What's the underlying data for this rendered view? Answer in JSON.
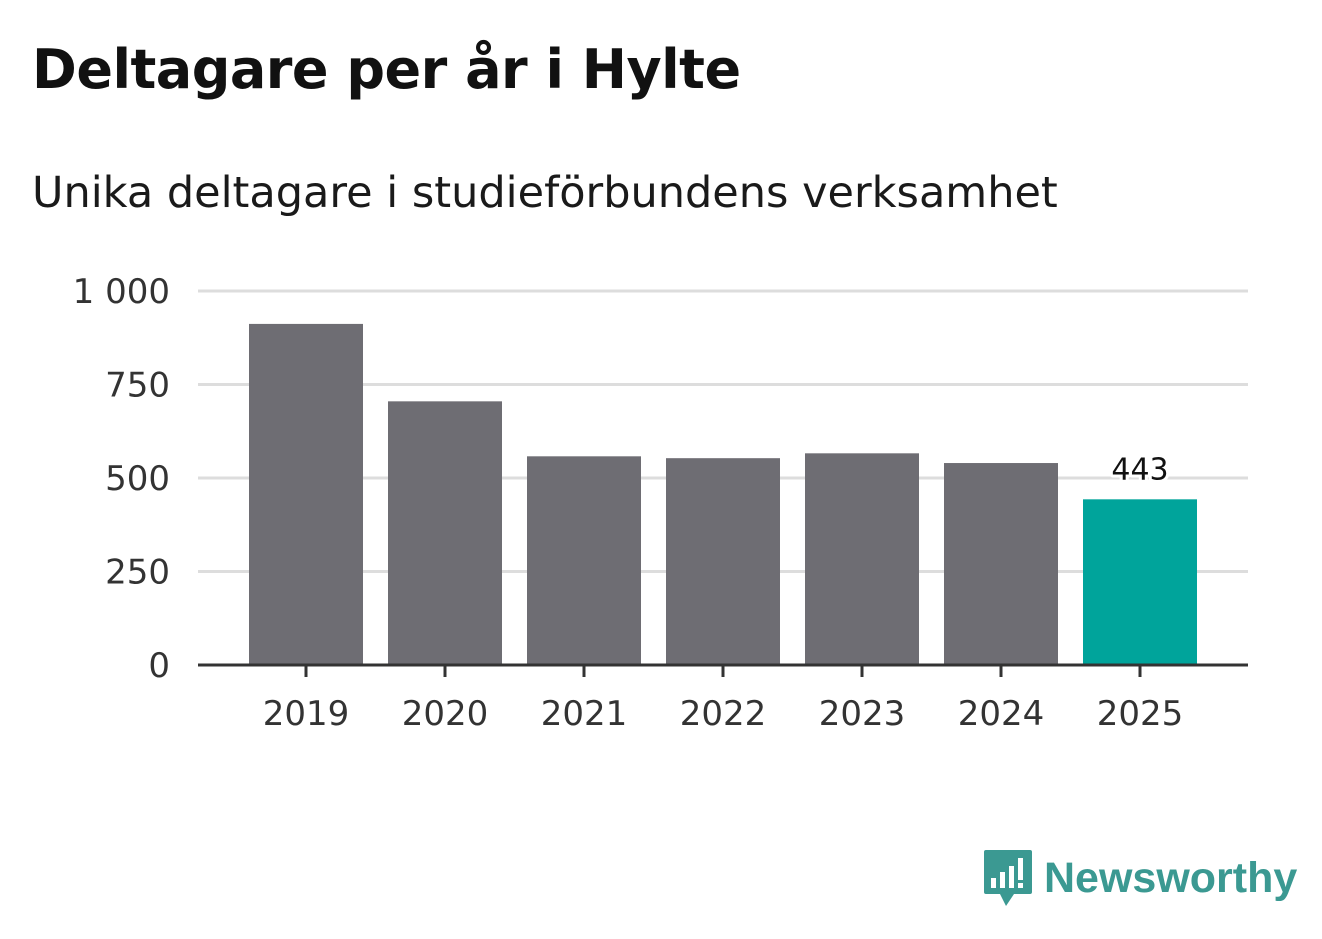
{
  "header": {
    "title": "Deltagare per år i Hylte",
    "subtitle": "Unika deltagare i studieförbundens verksamhet"
  },
  "brand": {
    "name": "Newsworthy",
    "color": "#3b9992"
  },
  "colors": {
    "bar_default": "#6e6d73",
    "bar_highlight": "#00a49b",
    "grid": "#dddddd",
    "axis": "#333333"
  },
  "chart_data": {
    "type": "bar",
    "title": "Deltagare per år i Hylte",
    "subtitle": "Unika deltagare i studieförbundens verksamhet",
    "xlabel": "",
    "ylabel": "",
    "categories": [
      "2019",
      "2020",
      "2021",
      "2022",
      "2023",
      "2024",
      "2025"
    ],
    "values": [
      912,
      705,
      558,
      553,
      566,
      540,
      443
    ],
    "highlight_index": 6,
    "data_labels": [
      {
        "index": 6,
        "text": "443"
      }
    ],
    "ylim": [
      0,
      1000
    ],
    "yticks": [
      0,
      250,
      500,
      750,
      1000
    ],
    "ytick_labels": [
      "0",
      "250",
      "500",
      "750",
      "1 000"
    ],
    "grid": true,
    "legend": "none"
  }
}
